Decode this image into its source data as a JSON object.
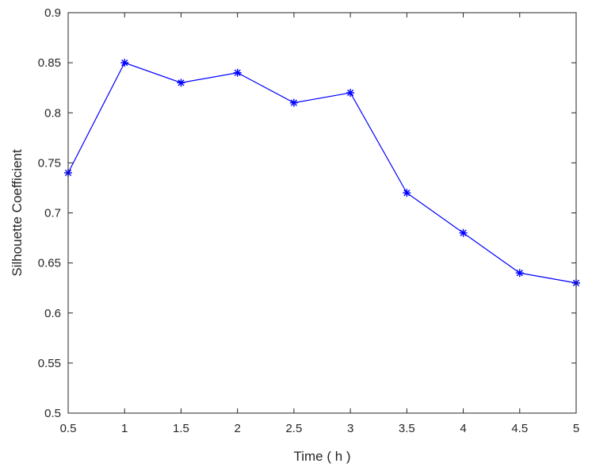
{
  "chart_data": {
    "type": "line",
    "title": "",
    "xlabel": "Time ( h )",
    "ylabel": "Silhouette Coefficient",
    "xlim": [
      0.5,
      5
    ],
    "ylim": [
      0.5,
      0.9
    ],
    "xticks": [
      0.5,
      1,
      1.5,
      2,
      2.5,
      3,
      3.5,
      4,
      4.5,
      5
    ],
    "xtick_labels": [
      "0.5",
      "1",
      "1.5",
      "2",
      "2.5",
      "3",
      "3.5",
      "4",
      "4.5",
      "5"
    ],
    "yticks": [
      0.5,
      0.55,
      0.6,
      0.65,
      0.7,
      0.75,
      0.8,
      0.85,
      0.9
    ],
    "ytick_labels": [
      "0.5",
      "0.55",
      "0.6",
      "0.65",
      "0.7",
      "0.75",
      "0.8",
      "0.85",
      "0.9"
    ],
    "grid": false,
    "legend": "none",
    "series": [
      {
        "color": "#0000ff",
        "marker": "asterisk",
        "x": [
          0.5,
          1,
          1.5,
          2,
          2.5,
          3,
          3.5,
          4,
          4.5,
          5
        ],
        "y": [
          0.74,
          0.85,
          0.83,
          0.84,
          0.81,
          0.82,
          0.72,
          0.68,
          0.64,
          0.63
        ]
      }
    ]
  }
}
